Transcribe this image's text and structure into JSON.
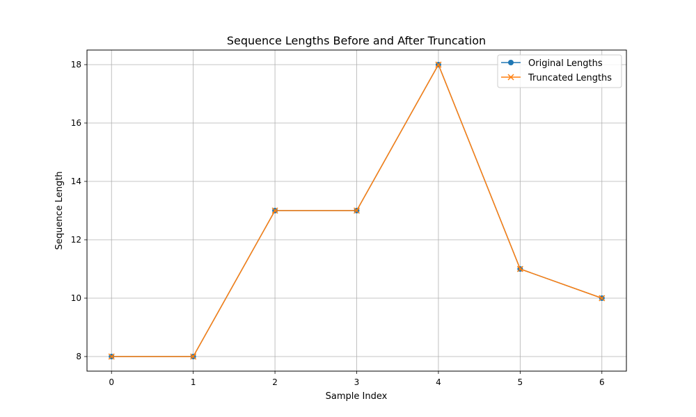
{
  "chart_data": {
    "type": "line",
    "title": "Sequence Lengths Before and After Truncation",
    "xlabel": "Sample Index",
    "ylabel": "Sequence Length",
    "x": [
      0,
      1,
      2,
      3,
      4,
      5,
      6
    ],
    "xlim": [
      -0.3,
      6.3
    ],
    "ylim": [
      7.5,
      18.5
    ],
    "xticks": [
      0,
      1,
      2,
      3,
      4,
      5,
      6
    ],
    "yticks": [
      8,
      10,
      12,
      14,
      16,
      18
    ],
    "grid": true,
    "legend_position": "top-right",
    "series": [
      {
        "name": "Original Lengths",
        "values": [
          8,
          8,
          13,
          13,
          18,
          11,
          10
        ],
        "color": "#1f77b4",
        "marker": "circle"
      },
      {
        "name": "Truncated Lengths",
        "values": [
          8,
          8,
          13,
          13,
          18,
          11,
          10
        ],
        "color": "#ff7f0e",
        "marker": "x"
      }
    ]
  }
}
